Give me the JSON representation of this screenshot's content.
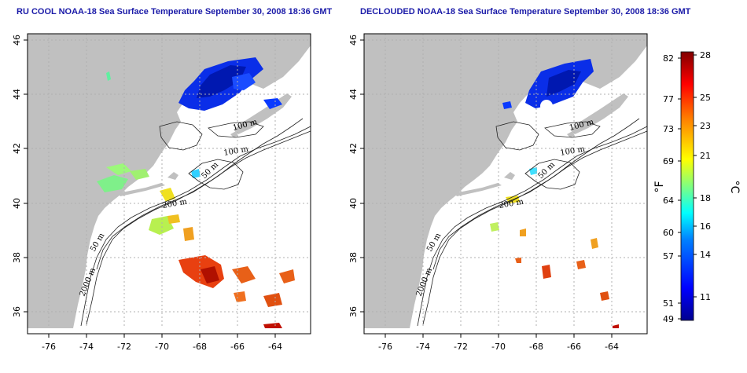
{
  "panels": [
    {
      "title": "RU COOL NOAA-18 Sea Surface Temperature September 30, 2008 18:36 GMT",
      "x_ticks": [
        "-76",
        "-74",
        "-72",
        "-70",
        "-68",
        "-66",
        "-64"
      ],
      "y_ticks": [
        "36",
        "38",
        "40",
        "42",
        "44",
        "46"
      ],
      "contour_labels": [
        "100 m",
        "100 m",
        "50 m",
        "200 m",
        "50 m",
        "2000 m"
      ]
    },
    {
      "title": "DECLOUDED NOAA-18 Sea Surface Temperature September 30, 2008 18:36 GMT",
      "x_ticks": [
        "-76",
        "-74",
        "-72",
        "-70",
        "-68",
        "-66",
        "-64"
      ],
      "y_ticks": [
        "36",
        "38",
        "40",
        "42",
        "44",
        "46"
      ],
      "contour_labels": [
        "100 m",
        "100 m",
        "50 m",
        "200 m",
        "50 m",
        "2000 m"
      ]
    }
  ],
  "colorbar": {
    "fahrenheit_ticks": [
      "82",
      "77",
      "73",
      "69",
      "64",
      "60",
      "57",
      "51",
      "49"
    ],
    "celsius_ticks": [
      "28",
      "25",
      "23",
      "21",
      "18",
      "16",
      "14",
      "11"
    ],
    "fahrenheit_label": "°F",
    "celsius_label": "°C",
    "colors": [
      "#00008f",
      "#0000ff",
      "#0080ff",
      "#00ffff",
      "#80ff80",
      "#ffff00",
      "#ff8000",
      "#ff0000",
      "#800000"
    ]
  },
  "map_colors": {
    "land": "#c0c0c0",
    "ocean": "#ffffff",
    "grid": "#b0b0b0"
  }
}
